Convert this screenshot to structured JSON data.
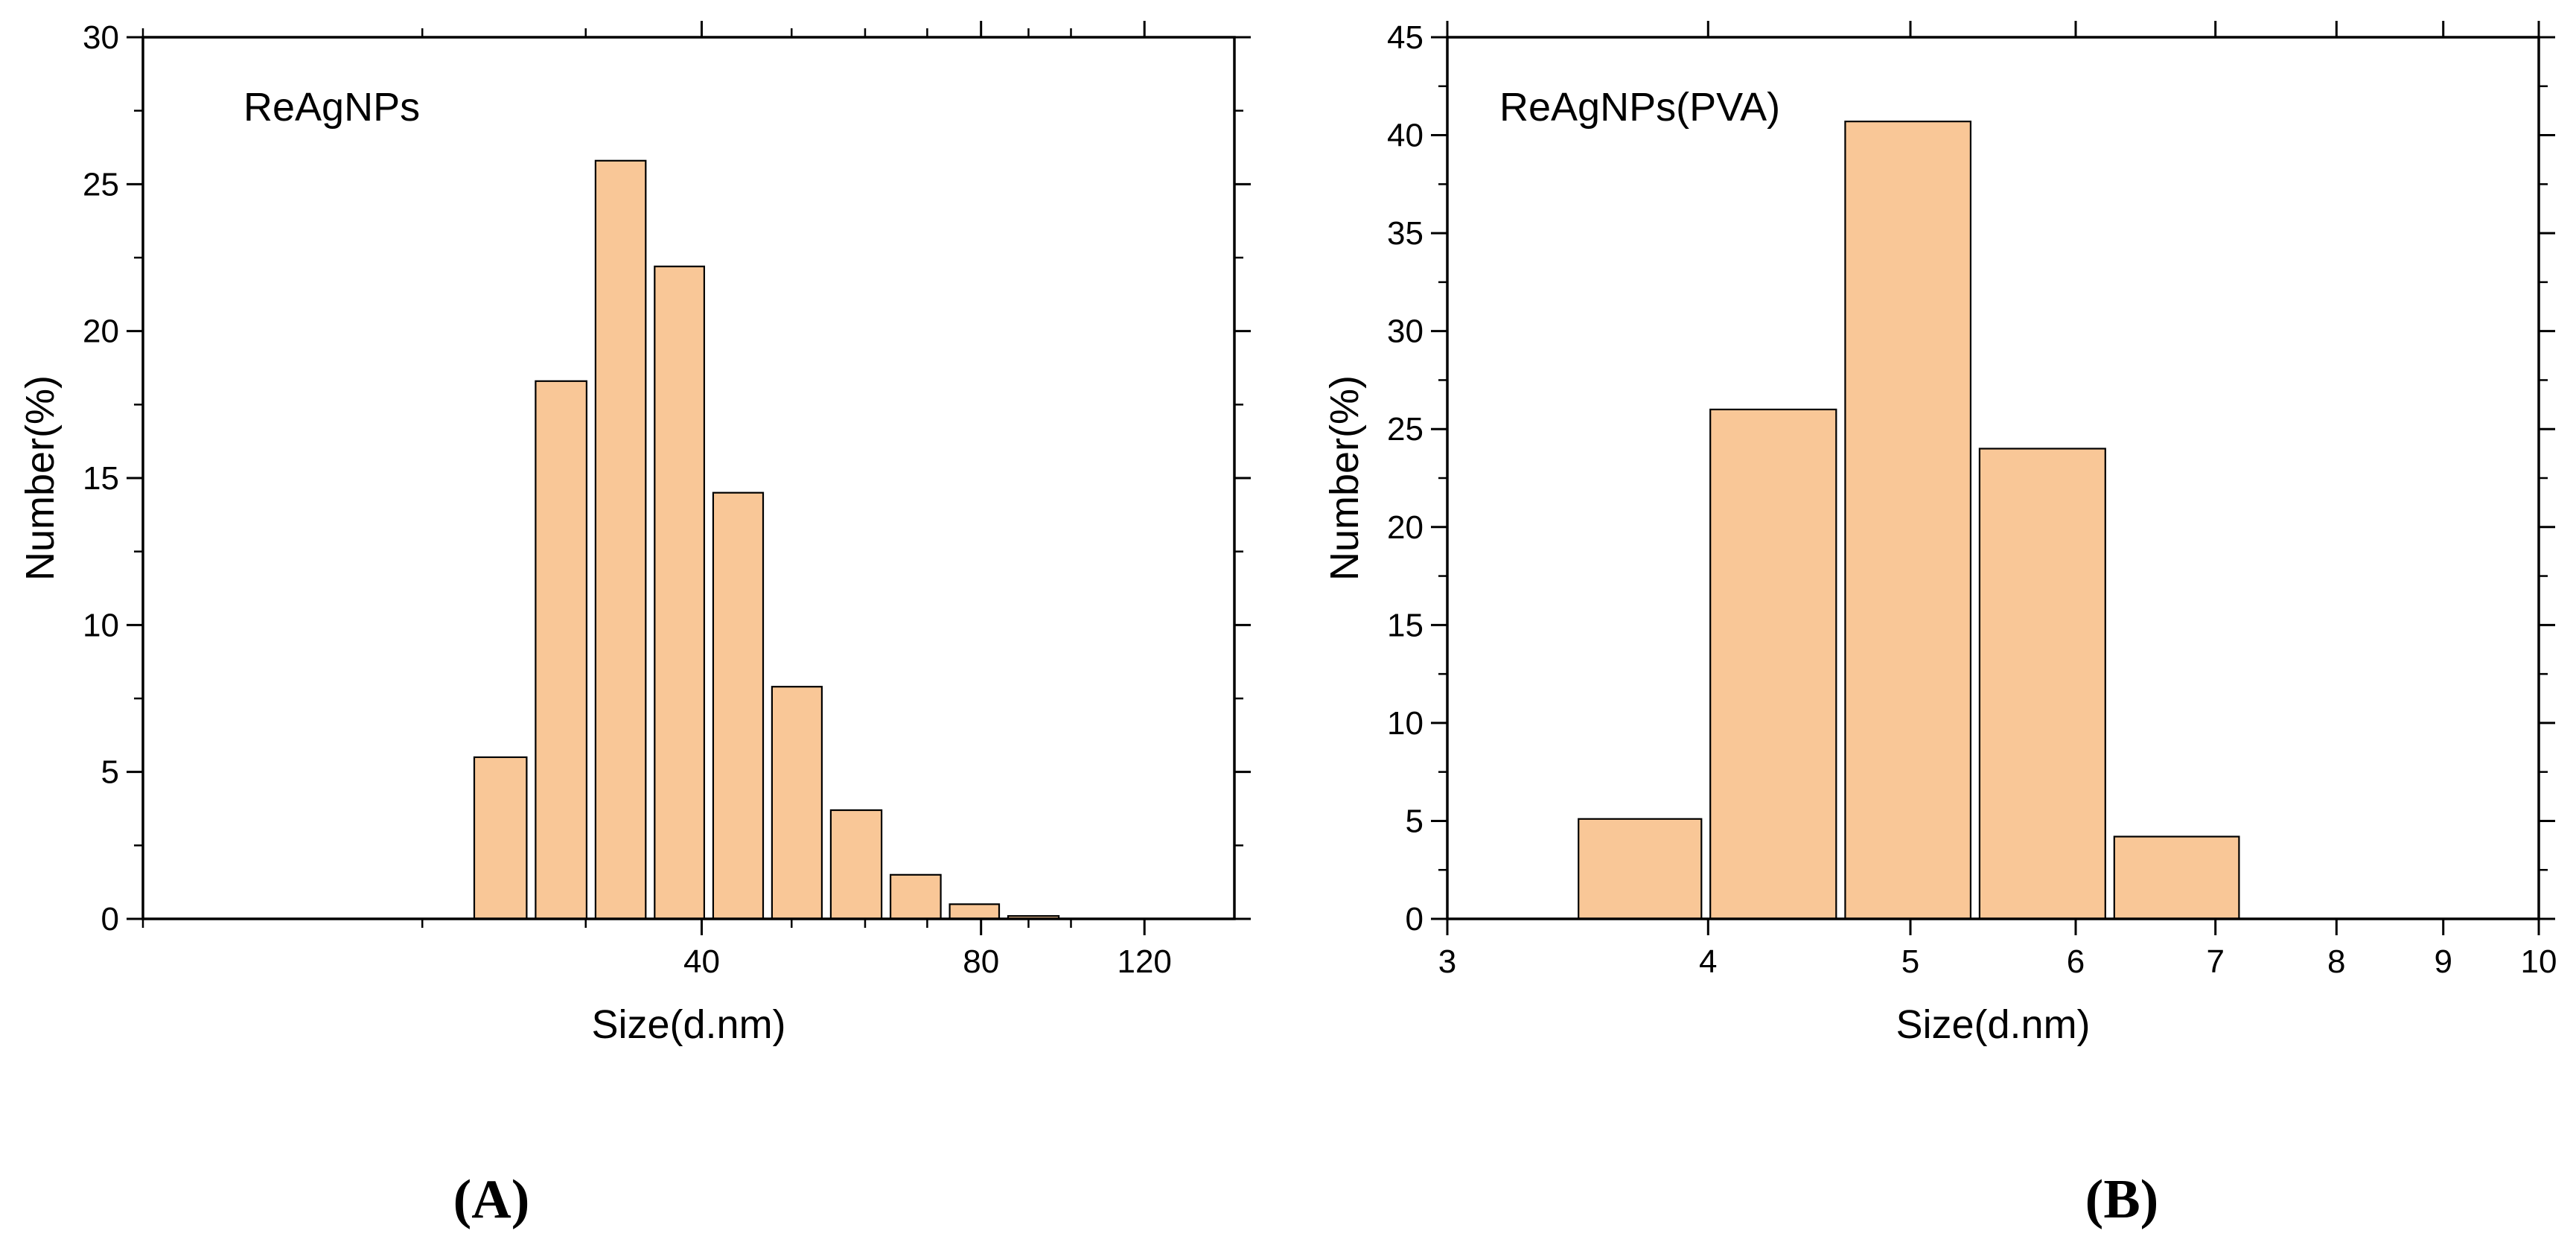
{
  "figure": {
    "panels": [
      "(A)",
      "(B)"
    ]
  },
  "chart_data": [
    {
      "type": "bar",
      "panel": "A",
      "annotation": "ReAgNPs",
      "xlabel": "Size(d.nm)",
      "ylabel": "Number(%)",
      "x_scale": "log",
      "xlim": [
        10,
        150
      ],
      "ylim": [
        0,
        30
      ],
      "xticks": [
        40,
        80,
        120
      ],
      "xtick_labels": [
        "40",
        "80",
        "120"
      ],
      "yticks": [
        0,
        5,
        10,
        15,
        20,
        25,
        30
      ],
      "ytick_labels": [
        "0",
        "5",
        "10",
        "15",
        "20",
        "25",
        "30"
      ],
      "categories": [
        "21.0",
        "24.4",
        "28.2",
        "32.7",
        "37.8",
        "43.8",
        "50.7",
        "58.8",
        "68.1",
        "78.8",
        "91.3"
      ],
      "bin_edges": [
        19.5,
        22.5,
        26.2,
        30.4,
        35.2,
        40.7,
        47.1,
        54.5,
        63.2,
        73.2,
        84.6,
        98.1
      ],
      "values": [
        0,
        5.5,
        18.3,
        25.8,
        22.2,
        14.5,
        7.9,
        3.7,
        1.5,
        0.5,
        0.1
      ],
      "bar_color": "#F9C797",
      "grid": false
    },
    {
      "type": "bar",
      "panel": "B",
      "annotation": "ReAgNPs(PVA)",
      "xlabel": "Size(d.nm)",
      "ylabel": "Number(%)",
      "x_scale": "log",
      "xlim": [
        3,
        10
      ],
      "ylim": [
        0,
        45
      ],
      "xticks": [
        3,
        4,
        5,
        6,
        7,
        8,
        9,
        10
      ],
      "xtick_labels": [
        "3",
        "4",
        "5",
        "6",
        "7",
        "8",
        "9",
        "10"
      ],
      "yticks": [
        0,
        5,
        10,
        15,
        20,
        25,
        30,
        35,
        40,
        45
      ],
      "ytick_labels": [
        "0",
        "5",
        "10",
        "15",
        "20",
        "25",
        "30",
        "35",
        "40",
        "45"
      ],
      "categories": [
        "3.7",
        "4.3",
        "5.0",
        "5.8",
        "6.7"
      ],
      "bin_edges": [
        3.45,
        3.99,
        4.63,
        5.37,
        6.23,
        7.22
      ],
      "values": [
        5.1,
        26.0,
        40.7,
        24.0,
        4.2
      ],
      "bar_color": "#F9C797",
      "grid": false
    }
  ]
}
